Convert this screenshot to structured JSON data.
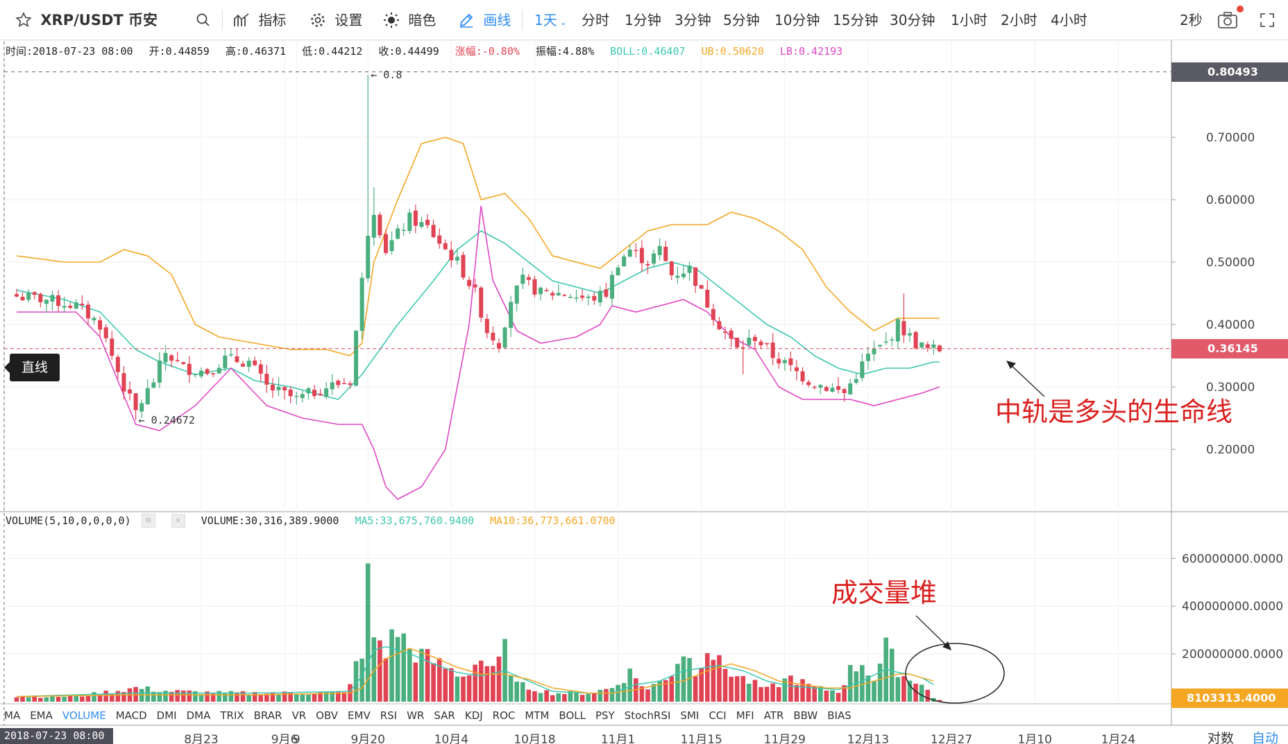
{
  "toolbar": {
    "symbol": "XRP/USDT 币安",
    "indicators": "指标",
    "settings": "设置",
    "theme": "暗色",
    "draw": "画线",
    "intervals": [
      {
        "label": "1天",
        "active": true
      },
      {
        "label": "分时",
        "active": false
      },
      {
        "label": "1分钟",
        "active": false
      },
      {
        "label": "3分钟",
        "active": false
      },
      {
        "label": "5分钟",
        "active": false
      },
      {
        "label": "10分钟",
        "active": false
      },
      {
        "label": "15分钟",
        "active": false
      },
      {
        "label": "30分钟",
        "active": false
      },
      {
        "label": "1小时",
        "active": false
      },
      {
        "label": "2小时",
        "active": false
      },
      {
        "label": "4小时",
        "active": false
      }
    ],
    "refresh": "2秒",
    "accent_color": "#2d8cf0"
  },
  "info": {
    "time": "时间:2018-07-23 08:00",
    "open": "开:0.44859",
    "high": "高:0.46371",
    "low": "低:0.44212",
    "close": "收:0.44499",
    "change": "涨幅:-0.80%",
    "amplitude": "振幅:4.88%",
    "boll": "BOLL:0.46407",
    "ub": "UB:0.50620",
    "lb": "LB:0.42193"
  },
  "volume_info": {
    "title": "VOLUME(5,10,0,0,0,0)",
    "value": "VOLUME:30,316,389.9000",
    "ma5": "MA5:33,675,760.9400",
    "ma10": "MA10:36,773,661.0700"
  },
  "drawing_tool": {
    "label": "直线"
  },
  "annotations": {
    "mid_band": "中轨是多头的生命线",
    "volume_pile": "成交量堆",
    "color": "#d9201f"
  },
  "indicator_tabs": [
    {
      "label": "MA",
      "active": false
    },
    {
      "label": "EMA",
      "active": false
    },
    {
      "label": "VOLUME",
      "active": true
    },
    {
      "label": "MACD",
      "active": false
    },
    {
      "label": "DMI",
      "active": false
    },
    {
      "label": "DMA",
      "active": false
    },
    {
      "label": "TRIX",
      "active": false
    },
    {
      "label": "BRAR",
      "active": false
    },
    {
      "label": "VR",
      "active": false
    },
    {
      "label": "OBV",
      "active": false
    },
    {
      "label": "EMV",
      "active": false
    },
    {
      "label": "RSI",
      "active": false
    },
    {
      "label": "WR",
      "active": false
    },
    {
      "label": "SAR",
      "active": false
    },
    {
      "label": "KDJ",
      "active": false
    },
    {
      "label": "ROC",
      "active": false
    },
    {
      "label": "MTM",
      "active": false
    },
    {
      "label": "BOLL",
      "active": false
    },
    {
      "label": "PSY",
      "active": false
    },
    {
      "label": "StochRSI",
      "active": false
    },
    {
      "label": "SMI",
      "active": false
    },
    {
      "label": "CCI",
      "active": false
    },
    {
      "label": "MFI",
      "active": false
    },
    {
      "label": "ATR",
      "active": false
    },
    {
      "label": "BBW",
      "active": false
    },
    {
      "label": "BIAS",
      "active": false
    }
  ],
  "bottom": {
    "time_cursor": "2018-07-23 08:00",
    "log_label": "对数",
    "auto_label": "自动"
  },
  "chart_data": {
    "type": "candlestick",
    "symbol": "XRP/USDT",
    "interval": "1天",
    "price_axis": {
      "ticks": [
        "0.70000",
        "0.60000",
        "0.50000",
        "0.40000",
        "0.30000",
        "0.20000"
      ],
      "tick_values": [
        0.7,
        0.6,
        0.5,
        0.4,
        0.3,
        0.2
      ],
      "range": [
        0.1,
        0.82
      ]
    },
    "volume_axis": {
      "ticks": [
        "600000000.0000",
        "400000000.0000",
        "200000000.0000"
      ],
      "tick_values": [
        600000000,
        400000000,
        200000000
      ],
      "range": [
        0,
        720000000
      ]
    },
    "time_axis": {
      "labels": [
        "9",
        "8月23",
        "9月6",
        "9月20",
        "10月4",
        "10月18",
        "11月1",
        "11月15",
        "11月29",
        "12月13",
        "12月27",
        "1月10",
        "1月24"
      ],
      "label_days": [
        47,
        31,
        45,
        59,
        73,
        87,
        101,
        115,
        129,
        143,
        157,
        171,
        185
      ]
    },
    "price_markers": [
      {
        "label": "0.80493",
        "value": 0.80493,
        "color": "#5a5a64"
      },
      {
        "label": "0.36145",
        "value": 0.36145,
        "color": "#e05a6a"
      }
    ],
    "extreme_labels": [
      {
        "label": "0.8",
        "day": 59,
        "value": 0.8
      },
      {
        "label": "0.24672",
        "day": 20,
        "value": 0.24672
      }
    ],
    "volume_marker": {
      "label": "8103313.4000",
      "color": "#f5a623"
    },
    "series": [
      {
        "name": "BOLL",
        "color": "#3cc8b0"
      },
      {
        "name": "UB",
        "color": "#f5a623"
      },
      {
        "name": "LB",
        "color": "#e045c3"
      }
    ],
    "up_color": "#4aae7e",
    "down_color": "#e04354",
    "close_anchors": [
      [
        0,
        0.445
      ],
      [
        5,
        0.44
      ],
      [
        10,
        0.43
      ],
      [
        14,
        0.4
      ],
      [
        18,
        0.3
      ],
      [
        20,
        0.26
      ],
      [
        23,
        0.31
      ],
      [
        25,
        0.355
      ],
      [
        28,
        0.33
      ],
      [
        32,
        0.325
      ],
      [
        35,
        0.345
      ],
      [
        39,
        0.34
      ],
      [
        42,
        0.3
      ],
      [
        47,
        0.28
      ],
      [
        52,
        0.3
      ],
      [
        56,
        0.31
      ],
      [
        59,
        0.55
      ],
      [
        60,
        0.585
      ],
      [
        62,
        0.52
      ],
      [
        66,
        0.57
      ],
      [
        69,
        0.555
      ],
      [
        72,
        0.52
      ],
      [
        74,
        0.5
      ],
      [
        77,
        0.45
      ],
      [
        79,
        0.39
      ],
      [
        81,
        0.37
      ],
      [
        83,
        0.44
      ],
      [
        85,
        0.47
      ],
      [
        88,
        0.45
      ],
      [
        92,
        0.45
      ],
      [
        96,
        0.44
      ],
      [
        99,
        0.45
      ],
      [
        101,
        0.5
      ],
      [
        103,
        0.52
      ],
      [
        106,
        0.5
      ],
      [
        108,
        0.52
      ],
      [
        110,
        0.48
      ],
      [
        113,
        0.49
      ],
      [
        115,
        0.45
      ],
      [
        118,
        0.4
      ],
      [
        121,
        0.36
      ],
      [
        124,
        0.38
      ],
      [
        127,
        0.35
      ],
      [
        130,
        0.33
      ],
      [
        133,
        0.31
      ],
      [
        136,
        0.3
      ],
      [
        139,
        0.29
      ],
      [
        141,
        0.32
      ],
      [
        143,
        0.35
      ],
      [
        146,
        0.37
      ],
      [
        148,
        0.4
      ],
      [
        151,
        0.37
      ],
      [
        153,
        0.36
      ],
      [
        155,
        0.36
      ]
    ],
    "boll_anchors": [
      [
        0,
        0.455
      ],
      [
        8,
        0.44
      ],
      [
        14,
        0.42
      ],
      [
        20,
        0.36
      ],
      [
        24,
        0.34
      ],
      [
        30,
        0.32
      ],
      [
        36,
        0.33
      ],
      [
        40,
        0.31
      ],
      [
        46,
        0.3
      ],
      [
        54,
        0.28
      ],
      [
        58,
        0.32
      ],
      [
        64,
        0.4
      ],
      [
        70,
        0.47
      ],
      [
        74,
        0.52
      ],
      [
        78,
        0.55
      ],
      [
        82,
        0.53
      ],
      [
        86,
        0.5
      ],
      [
        90,
        0.47
      ],
      [
        94,
        0.46
      ],
      [
        98,
        0.45
      ],
      [
        102,
        0.47
      ],
      [
        106,
        0.49
      ],
      [
        110,
        0.5
      ],
      [
        114,
        0.49
      ],
      [
        118,
        0.46
      ],
      [
        122,
        0.43
      ],
      [
        126,
        0.4
      ],
      [
        130,
        0.38
      ],
      [
        134,
        0.35
      ],
      [
        138,
        0.33
      ],
      [
        142,
        0.32
      ],
      [
        146,
        0.33
      ],
      [
        150,
        0.33
      ],
      [
        154,
        0.34
      ]
    ],
    "ub_anchors": [
      [
        0,
        0.51
      ],
      [
        8,
        0.5
      ],
      [
        14,
        0.5
      ],
      [
        18,
        0.52
      ],
      [
        22,
        0.51
      ],
      [
        26,
        0.48
      ],
      [
        30,
        0.4
      ],
      [
        34,
        0.38
      ],
      [
        40,
        0.37
      ],
      [
        46,
        0.36
      ],
      [
        52,
        0.36
      ],
      [
        56,
        0.35
      ],
      [
        58,
        0.37
      ],
      [
        60,
        0.5
      ],
      [
        64,
        0.6
      ],
      [
        68,
        0.69
      ],
      [
        72,
        0.7
      ],
      [
        75,
        0.69
      ],
      [
        78,
        0.6
      ],
      [
        82,
        0.61
      ],
      [
        86,
        0.57
      ],
      [
        90,
        0.51
      ],
      [
        94,
        0.5
      ],
      [
        98,
        0.49
      ],
      [
        102,
        0.52
      ],
      [
        106,
        0.55
      ],
      [
        110,
        0.56
      ],
      [
        116,
        0.56
      ],
      [
        120,
        0.58
      ],
      [
        124,
        0.57
      ],
      [
        128,
        0.55
      ],
      [
        132,
        0.52
      ],
      [
        136,
        0.46
      ],
      [
        140,
        0.42
      ],
      [
        144,
        0.39
      ],
      [
        148,
        0.41
      ],
      [
        152,
        0.41
      ],
      [
        155,
        0.41
      ]
    ],
    "lb_anchors": [
      [
        0,
        0.42
      ],
      [
        10,
        0.42
      ],
      [
        14,
        0.38
      ],
      [
        20,
        0.24
      ],
      [
        24,
        0.23
      ],
      [
        30,
        0.27
      ],
      [
        36,
        0.33
      ],
      [
        42,
        0.27
      ],
      [
        48,
        0.25
      ],
      [
        54,
        0.24
      ],
      [
        58,
        0.24
      ],
      [
        60,
        0.2
      ],
      [
        62,
        0.14
      ],
      [
        64,
        0.12
      ],
      [
        68,
        0.14
      ],
      [
        72,
        0.2
      ],
      [
        76,
        0.4
      ],
      [
        78,
        0.59
      ],
      [
        80,
        0.47
      ],
      [
        84,
        0.39
      ],
      [
        88,
        0.37
      ],
      [
        94,
        0.38
      ],
      [
        98,
        0.4
      ],
      [
        100,
        0.43
      ],
      [
        104,
        0.42
      ],
      [
        108,
        0.43
      ],
      [
        112,
        0.44
      ],
      [
        116,
        0.42
      ],
      [
        120,
        0.38
      ],
      [
        124,
        0.36
      ],
      [
        128,
        0.3
      ],
      [
        132,
        0.28
      ],
      [
        136,
        0.28
      ],
      [
        140,
        0.28
      ],
      [
        144,
        0.27
      ],
      [
        148,
        0.28
      ],
      [
        152,
        0.29
      ],
      [
        155,
        0.3
      ]
    ],
    "volume_anchors": [
      [
        0,
        0.03
      ],
      [
        10,
        0.03
      ],
      [
        18,
        0.07
      ],
      [
        20,
        0.08
      ],
      [
        26,
        0.06
      ],
      [
        35,
        0.05
      ],
      [
        45,
        0.05
      ],
      [
        55,
        0.05
      ],
      [
        57,
        0.2
      ],
      [
        58,
        0.25
      ],
      [
        59,
        0.7
      ],
      [
        60,
        0.39
      ],
      [
        62,
        0.3
      ],
      [
        64,
        0.42
      ],
      [
        66,
        0.3
      ],
      [
        68,
        0.27
      ],
      [
        72,
        0.2
      ],
      [
        75,
        0.15
      ],
      [
        78,
        0.25
      ],
      [
        80,
        0.17
      ],
      [
        82,
        0.3
      ],
      [
        84,
        0.1
      ],
      [
        90,
        0.05
      ],
      [
        96,
        0.05
      ],
      [
        100,
        0.08
      ],
      [
        103,
        0.17
      ],
      [
        106,
        0.07
      ],
      [
        108,
        0.12
      ],
      [
        110,
        0.17
      ],
      [
        112,
        0.3
      ],
      [
        114,
        0.18
      ],
      [
        116,
        0.33
      ],
      [
        118,
        0.22
      ],
      [
        121,
        0.15
      ],
      [
        126,
        0.07
      ],
      [
        130,
        0.14
      ],
      [
        134,
        0.08
      ],
      [
        138,
        0.06
      ],
      [
        140,
        0.18
      ],
      [
        142,
        0.23
      ],
      [
        144,
        0.13
      ],
      [
        146,
        0.31
      ],
      [
        148,
        0.19
      ],
      [
        150,
        0.12
      ],
      [
        152,
        0.12
      ],
      [
        154,
        0.02
      ],
      [
        155,
        0.01
      ]
    ],
    "ma5_anchors": [
      [
        0,
        0.03
      ],
      [
        20,
        0.05
      ],
      [
        40,
        0.05
      ],
      [
        56,
        0.06
      ],
      [
        58,
        0.15
      ],
      [
        60,
        0.3
      ],
      [
        62,
        0.32
      ],
      [
        66,
        0.28
      ],
      [
        70,
        0.22
      ],
      [
        74,
        0.17
      ],
      [
        78,
        0.15
      ],
      [
        82,
        0.18
      ],
      [
        86,
        0.12
      ],
      [
        90,
        0.06
      ],
      [
        96,
        0.05
      ],
      [
        100,
        0.05
      ],
      [
        104,
        0.1
      ],
      [
        108,
        0.12
      ],
      [
        112,
        0.18
      ],
      [
        116,
        0.2
      ],
      [
        118,
        0.21
      ],
      [
        122,
        0.18
      ],
      [
        126,
        0.12
      ],
      [
        130,
        0.09
      ],
      [
        134,
        0.08
      ],
      [
        138,
        0.07
      ],
      [
        142,
        0.12
      ],
      [
        146,
        0.19
      ],
      [
        148,
        0.17
      ],
      [
        150,
        0.16
      ],
      [
        152,
        0.14
      ],
      [
        154,
        0.1
      ]
    ],
    "ma10_anchors": [
      [
        0,
        0.03
      ],
      [
        20,
        0.04
      ],
      [
        40,
        0.04
      ],
      [
        56,
        0.05
      ],
      [
        58,
        0.08
      ],
      [
        60,
        0.18
      ],
      [
        62,
        0.25
      ],
      [
        66,
        0.31
      ],
      [
        70,
        0.26
      ],
      [
        74,
        0.2
      ],
      [
        78,
        0.16
      ],
      [
        82,
        0.16
      ],
      [
        86,
        0.13
      ],
      [
        90,
        0.08
      ],
      [
        96,
        0.05
      ],
      [
        100,
        0.05
      ],
      [
        104,
        0.07
      ],
      [
        108,
        0.1
      ],
      [
        112,
        0.12
      ],
      [
        116,
        0.18
      ],
      [
        120,
        0.22
      ],
      [
        124,
        0.18
      ],
      [
        128,
        0.12
      ],
      [
        132,
        0.1
      ],
      [
        136,
        0.08
      ],
      [
        140,
        0.08
      ],
      [
        144,
        0.12
      ],
      [
        148,
        0.16
      ],
      [
        150,
        0.16
      ],
      [
        152,
        0.14
      ],
      [
        154,
        0.12
      ]
    ]
  }
}
